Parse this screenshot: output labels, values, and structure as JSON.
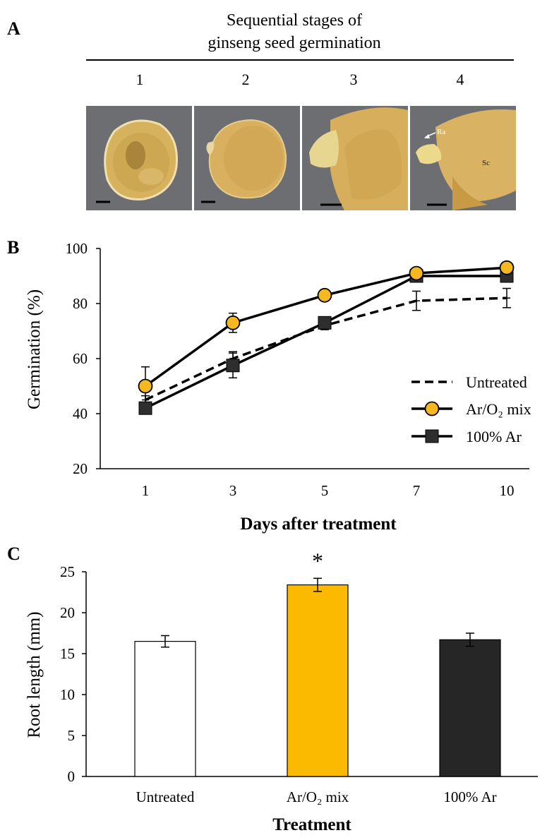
{
  "panel_a": {
    "label": "A",
    "title_line1": "Sequential stages of",
    "title_line2": "ginseng seed germination",
    "stages": [
      "1",
      "2",
      "3",
      "4"
    ],
    "annotation_ra": "Ra",
    "annotation_sc": "Sc",
    "colors": {
      "photo_background": "#6d6e72",
      "seed": "#d9b466",
      "seed_light": "#e8cb85",
      "seed_dark": "#b58e3c"
    }
  },
  "chart_data": [
    {
      "panel_label": "B",
      "type": "line",
      "title": "",
      "xlabel": "Days after treatment",
      "ylabel": "Germination (%)",
      "x": [
        "1",
        "3",
        "5",
        "7",
        "10"
      ],
      "ylim": [
        20,
        100
      ],
      "yticks": [
        20,
        40,
        60,
        80,
        100
      ],
      "grid": false,
      "legend_placement": "right",
      "series": [
        {
          "name": "Untreated",
          "values": [
            45,
            60,
            72,
            81,
            82
          ],
          "errors": [
            1.5,
            2.5,
            1.5,
            3.5,
            3.5
          ],
          "line": "dashed",
          "marker": "plus",
          "color": "#000000"
        },
        {
          "name": "Ar/O₂ mix",
          "values": [
            50,
            73,
            83,
            91,
            93
          ],
          "errors": [
            7,
            3.5,
            1,
            0.5,
            1
          ],
          "line": "solid",
          "marker": "circle",
          "color": "#f5b81f"
        },
        {
          "name": "100% Ar",
          "values": [
            42,
            57.5,
            73,
            90,
            90
          ],
          "errors": [
            1,
            4.5,
            1,
            1,
            1
          ],
          "line": "solid",
          "marker": "square",
          "color": "#2e2e2e"
        }
      ]
    },
    {
      "panel_label": "C",
      "type": "bar",
      "title": "",
      "xlabel": "Treatment",
      "ylabel": "Root length (mm)",
      "categories": [
        "Untreated",
        "Ar/O₂ mix",
        "100% Ar"
      ],
      "values": [
        16.5,
        23.4,
        16.7
      ],
      "errors": [
        0.7,
        0.8,
        0.8
      ],
      "colors": [
        "#ffffff",
        "#fbb900",
        "#262626"
      ],
      "ylim": [
        0,
        25
      ],
      "yticks": [
        0,
        5,
        10,
        15,
        20,
        25
      ],
      "grid": false,
      "significance": {
        "category_index": 1,
        "mark": "*"
      }
    }
  ]
}
